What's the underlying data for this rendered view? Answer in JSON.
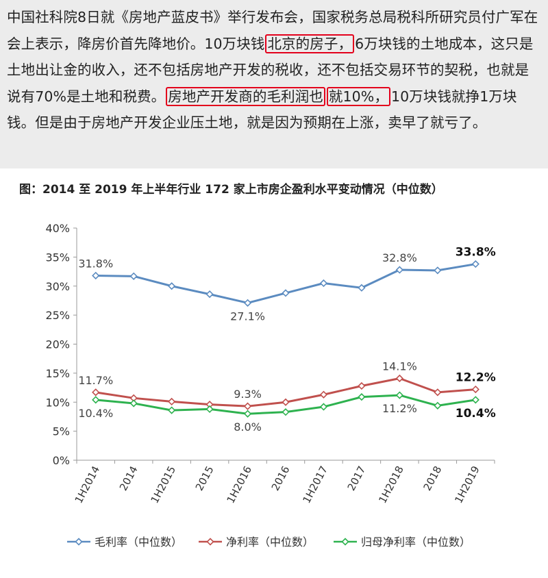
{
  "article": {
    "s1": "中国社科院8日就《房地产蓝皮书》举行发布会，国家税务总局税科所研究员付广军在会上表示，降房价首先降地价。10万块钱",
    "h1": "北京的房子，",
    "s2": "6万块钱的土地成本，这只是土地出让金的收入，还不包括房地产开发的税收，还不包括交易环节的契税，也就是说有70%是土地和税费。",
    "h2": "房地产开发商的毛利润也",
    "h3": "就10%，",
    "s3": "10万块钱就挣1万块钱。但是由于房地产开发企业压土地，就是因为预期在上涨，卖早了就亏了。",
    "highlight_color": "#e3001b"
  },
  "chart_data": {
    "type": "line",
    "title": "图：2014 至 2019 年上半年行业 172 家上市房企盈利水平变动情况（中位数）",
    "xlabel": "",
    "ylabel": "",
    "categories": [
      "1H2014",
      "2014",
      "1H2015",
      "2015",
      "1H2016",
      "2016",
      "1H2017",
      "2017",
      "1H2018",
      "2018",
      "1H2019"
    ],
    "ylim": [
      0,
      40
    ],
    "yticks": [
      "0%",
      "5%",
      "10%",
      "15%",
      "20%",
      "25%",
      "30%",
      "35%",
      "40%"
    ],
    "grid": false,
    "legend_position": "bottom",
    "series": [
      {
        "name": "毛利率（中位数）",
        "color": "#5b8bc0",
        "values": [
          31.8,
          31.7,
          30.0,
          28.6,
          27.1,
          28.8,
          30.5,
          29.7,
          32.8,
          32.7,
          33.8
        ],
        "labels": [
          {
            "index": 0,
            "text": "31.8%",
            "pos": "above",
            "bold": false
          },
          {
            "index": 4,
            "text": "27.1%",
            "pos": "below",
            "bold": false
          },
          {
            "index": 8,
            "text": "32.8%",
            "pos": "above",
            "bold": false
          },
          {
            "index": 10,
            "text": "33.8%",
            "pos": "above",
            "bold": true
          }
        ]
      },
      {
        "name": "净利率（中位数）",
        "color": "#c0504d",
        "values": [
          11.7,
          10.7,
          10.1,
          9.6,
          9.3,
          10.0,
          11.3,
          12.8,
          14.1,
          11.7,
          12.2
        ],
        "labels": [
          {
            "index": 0,
            "text": "11.7%",
            "pos": "above",
            "bold": false
          },
          {
            "index": 4,
            "text": "9.3%",
            "pos": "above",
            "bold": false
          },
          {
            "index": 8,
            "text": "14.1%",
            "pos": "above",
            "bold": false
          },
          {
            "index": 10,
            "text": "12.2%",
            "pos": "above",
            "bold": true
          }
        ]
      },
      {
        "name": "归母净利率（中位数）",
        "color": "#2eb24f",
        "values": [
          10.4,
          9.8,
          8.6,
          8.8,
          8.0,
          8.3,
          9.2,
          10.9,
          11.2,
          9.4,
          10.4
        ],
        "labels": [
          {
            "index": 0,
            "text": "10.4%",
            "pos": "below",
            "bold": false
          },
          {
            "index": 4,
            "text": "8.0%",
            "pos": "below",
            "bold": false
          },
          {
            "index": 8,
            "text": "11.2%",
            "pos": "below",
            "bold": false
          },
          {
            "index": 10,
            "text": "10.4%",
            "pos": "below",
            "bold": true
          }
        ]
      }
    ]
  }
}
